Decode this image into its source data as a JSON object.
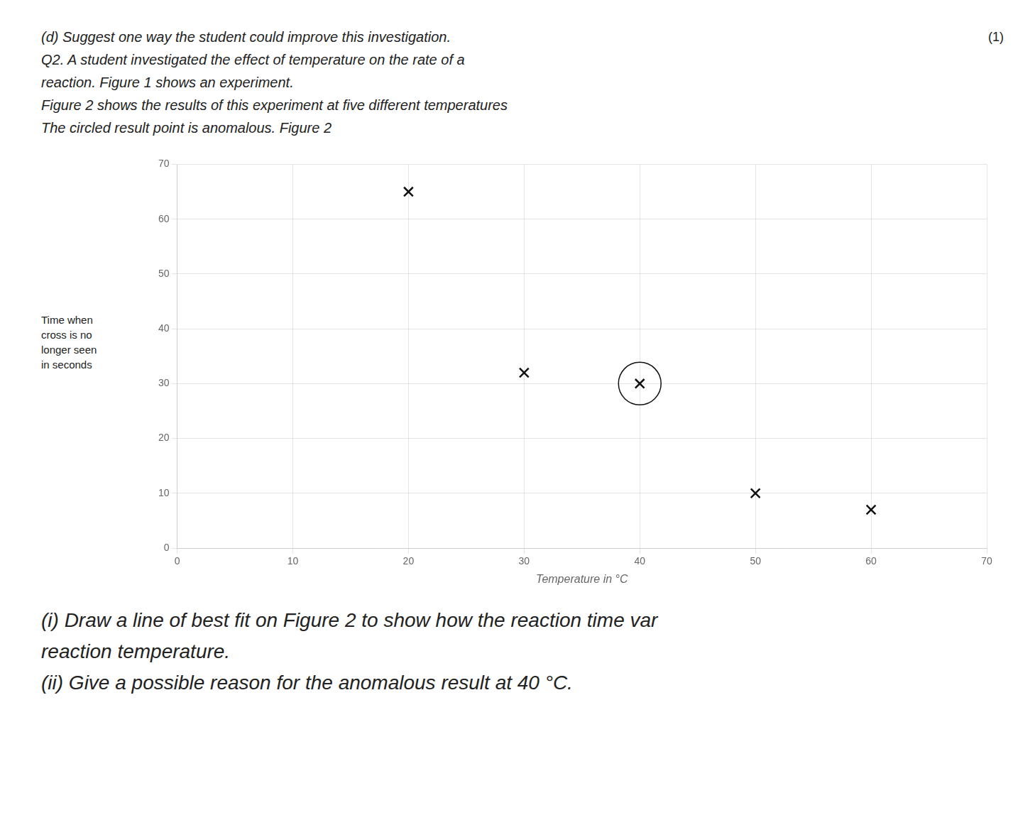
{
  "chart_data": {
    "type": "scatter",
    "text_above": [
      "(d) Suggest one way the student could improve this investigation.",
      "Q2. A student investigated the effect of temperature on the rate of a",
      "reaction. Figure 1 shows an experiment.",
      "Figure 2 shows the results of this experiment at five different temperatures",
      "The circled result point is anomalous. Figure 2"
    ],
    "annotation": "(1)",
    "xlabel": "Temperature in °C",
    "ylabel": [
      "Time when",
      "cross is no",
      "longer seen",
      "in seconds"
    ],
    "x": [
      20,
      30,
      40,
      50,
      60
    ],
    "values": [
      65,
      32,
      30,
      10,
      7
    ],
    "anomalous": [
      false,
      false,
      true,
      false,
      false
    ],
    "xlim": [
      0,
      70
    ],
    "ylim": [
      0,
      70
    ],
    "xticks": [
      0,
      10,
      20,
      30,
      40,
      50,
      60,
      70
    ],
    "yticks": [
      0,
      10,
      20,
      30,
      40,
      50,
      60,
      70
    ],
    "marker": "x",
    "color": "#111111",
    "grid": true,
    "text_below": [
      "(i) Draw a line of best fit on Figure 2 to show how the reaction time var",
      "reaction temperature.",
      "(ii) Give a possible reason for the anomalous result at 40 °C."
    ]
  }
}
